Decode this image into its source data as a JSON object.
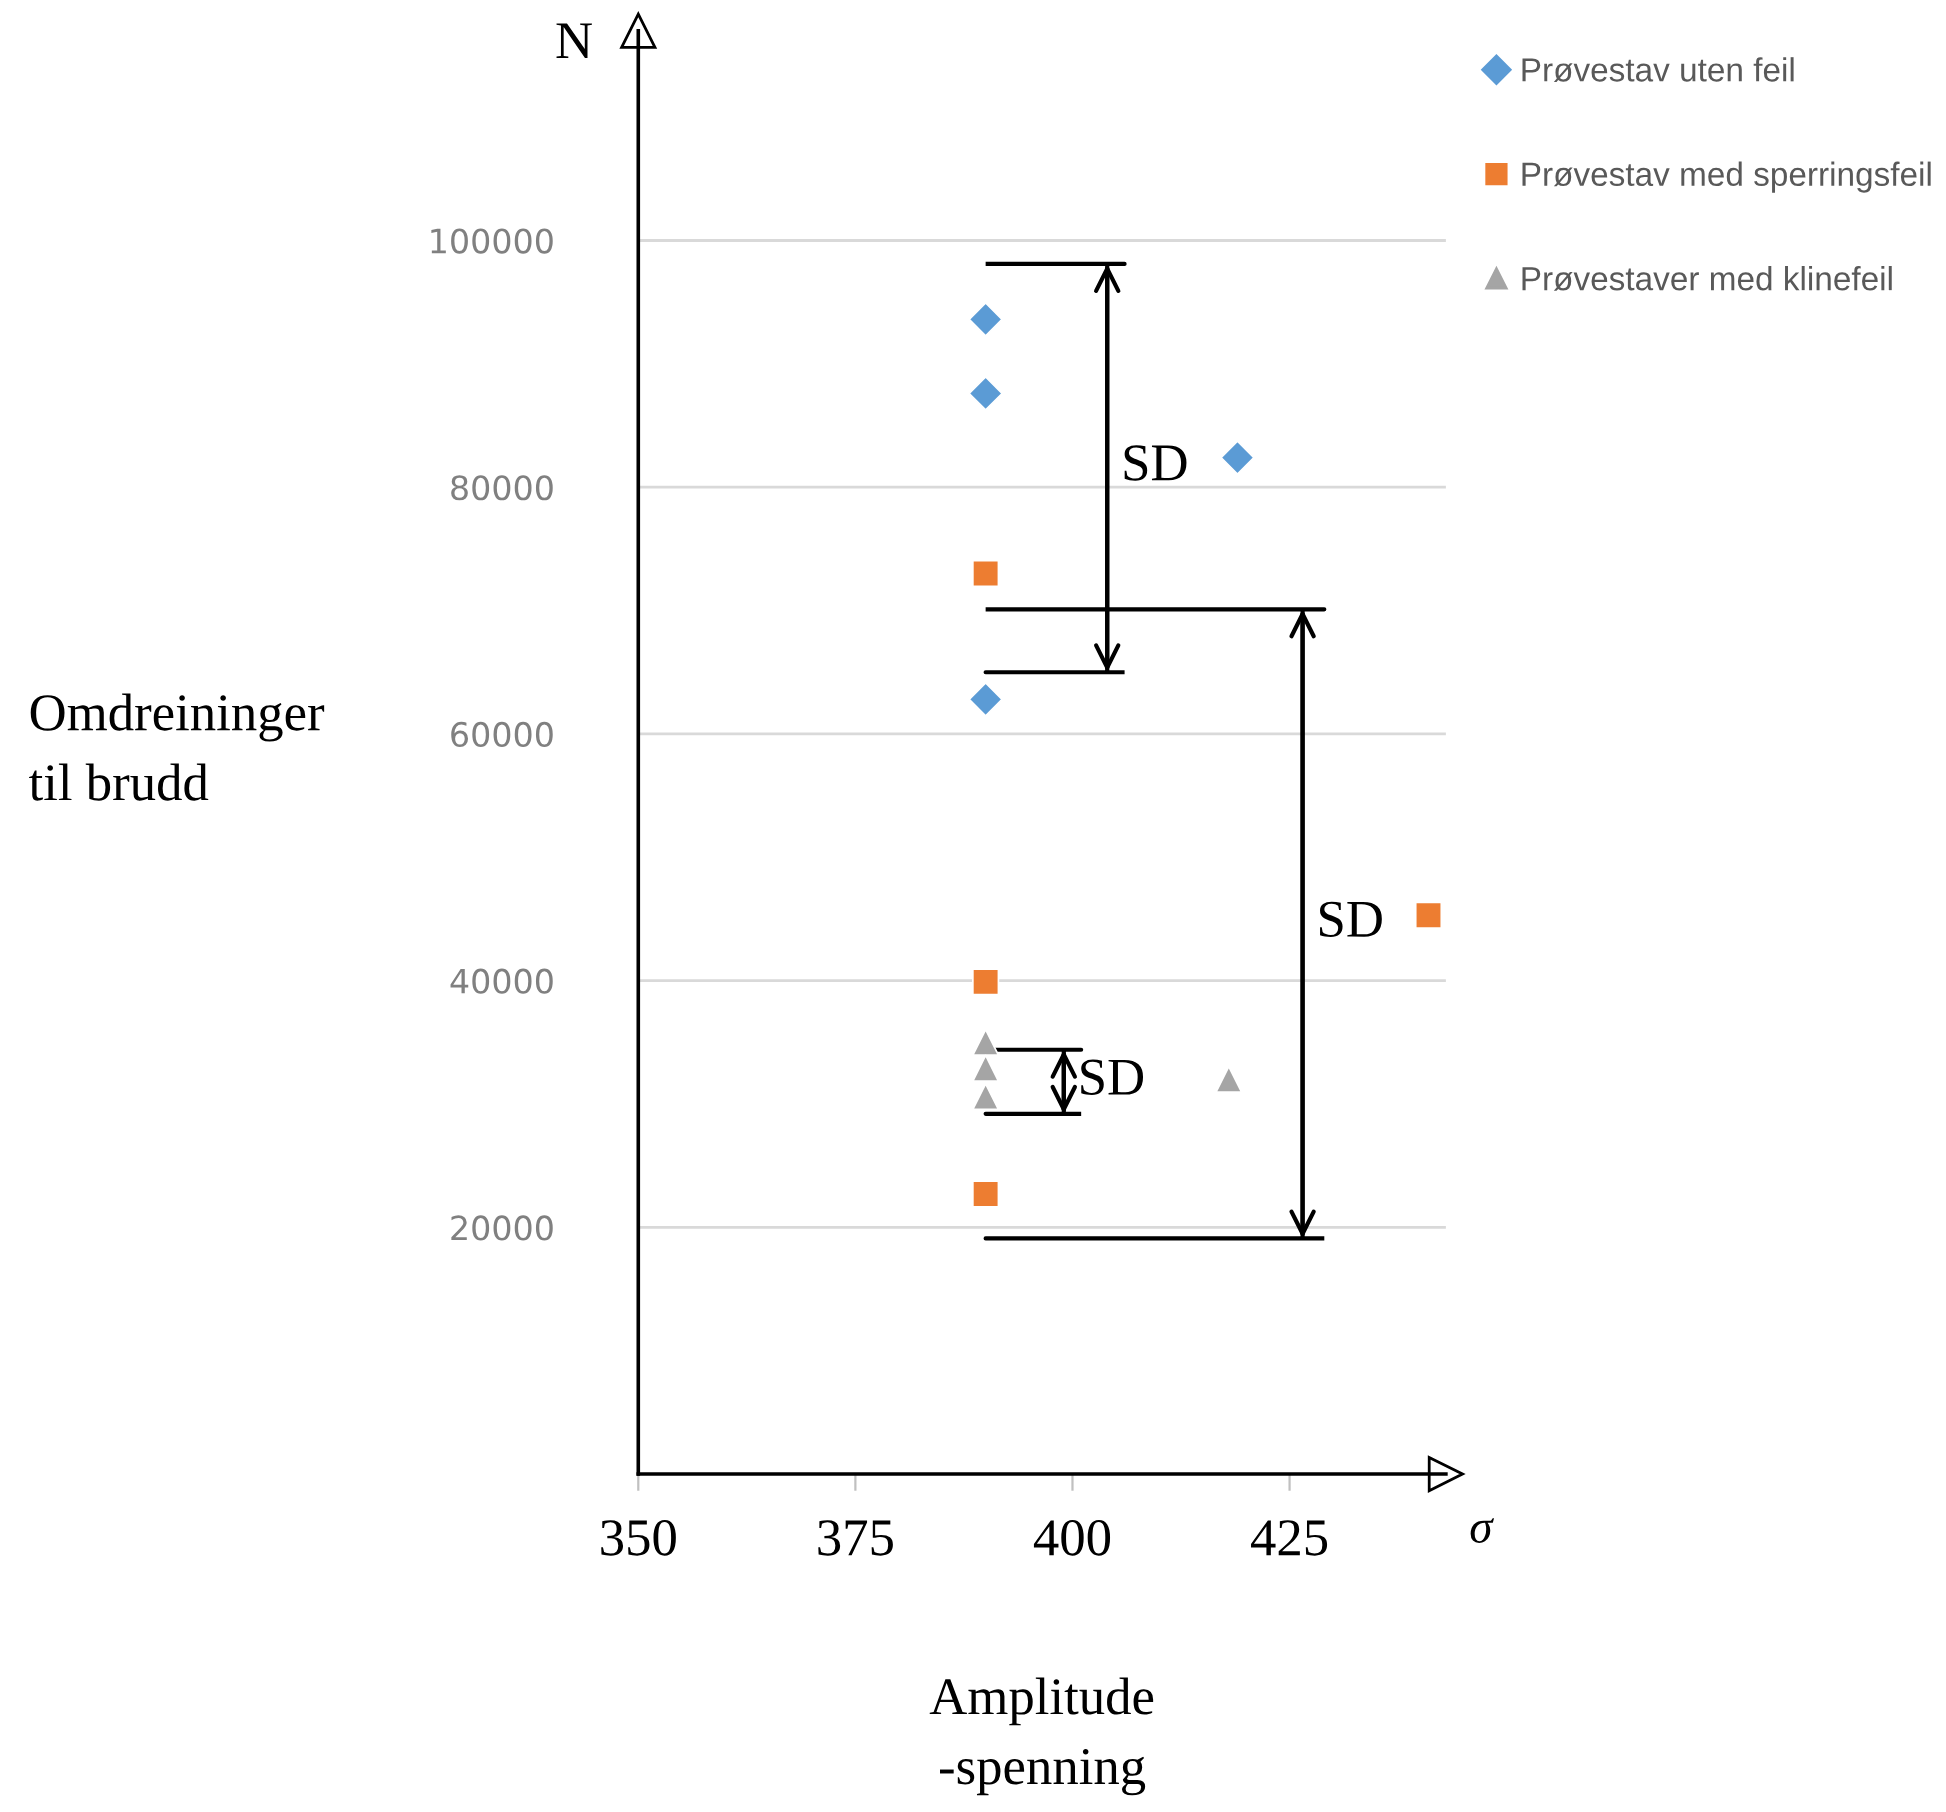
{
  "chart_data": {
    "type": "scatter",
    "xlabel": "Amplitude\n-spenning",
    "ylabel": "Omdreininger\ntil brudd",
    "xlim": [
      350,
      443
    ],
    "ylim": [
      0,
      117000
    ],
    "xticks": [
      350,
      375,
      400,
      425
    ],
    "yticks": [
      20000,
      40000,
      60000,
      80000,
      100000
    ],
    "grid": "y",
    "legend": "top right",
    "series": [
      {
        "name": "Prøvestav uten feil",
        "color": "#5b9bd5",
        "marker": "diamond",
        "x": [
          390,
          390,
          390,
          419
        ],
        "values": [
          93600,
          87600,
          62800,
          82400
        ]
      },
      {
        "name": "Prøvestav med sperringsfeil",
        "color": "#ed7d31",
        "marker": "square",
        "x": [
          390,
          390,
          390,
          441
        ],
        "values": [
          73000,
          39900,
          22700,
          45300
        ]
      },
      {
        "name": "Prøvestaver med klinefeil",
        "color": "#a5a5a5",
        "marker": "triangle",
        "x": [
          390,
          390,
          390,
          418
        ],
        "values": [
          35000,
          32900,
          30600,
          32000
        ]
      },
      {
        "type": "line",
        "color": "#000000",
        "x": [
          390,
          406,
          404,
          404,
          390,
          406
        ],
        "values": [
          98100,
          98100,
          98100,
          65000,
          65000,
          65000
        ]
      },
      {
        "type": "line",
        "color": "#000000",
        "x": [
          390,
          429,
          426.5,
          426.5,
          390,
          429
        ],
        "values": [
          70100,
          70100,
          70100,
          19100,
          19100,
          19100
        ]
      },
      {
        "type": "line",
        "color": "#000000",
        "x": [
          390,
          401,
          399,
          399,
          390,
          401
        ],
        "values": [
          34400,
          34400,
          34400,
          29200,
          29200,
          29200
        ]
      }
    ],
    "annotations": [
      {
        "text": "SD",
        "x": 404,
        "y": 81600
      },
      {
        "text": "SD",
        "x": 426.5,
        "y": 44600
      },
      {
        "text": "SD",
        "x": 399,
        "y": 31800
      },
      "N",
      "σ"
    ]
  }
}
